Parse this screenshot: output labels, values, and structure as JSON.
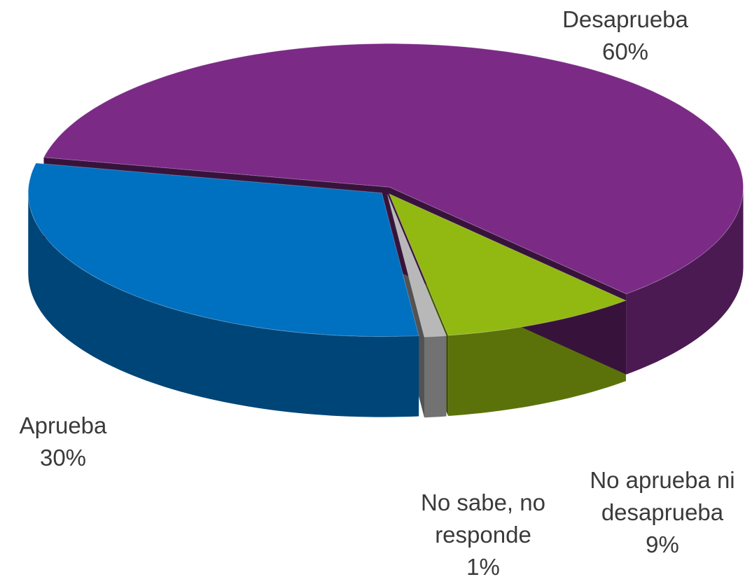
{
  "chart_data": {
    "type": "pie",
    "categories": [
      "No aprueba ni desaprueba",
      "No sabe, no responde",
      "Aprueba",
      "Desaprueba"
    ],
    "values": [
      9,
      1,
      30,
      60
    ],
    "value_labels": [
      "9%",
      "1%",
      "30%",
      "60%"
    ],
    "colors": [
      "#92b812",
      "#b8b8b8",
      "#0070c0",
      "#7b2a86"
    ]
  }
}
